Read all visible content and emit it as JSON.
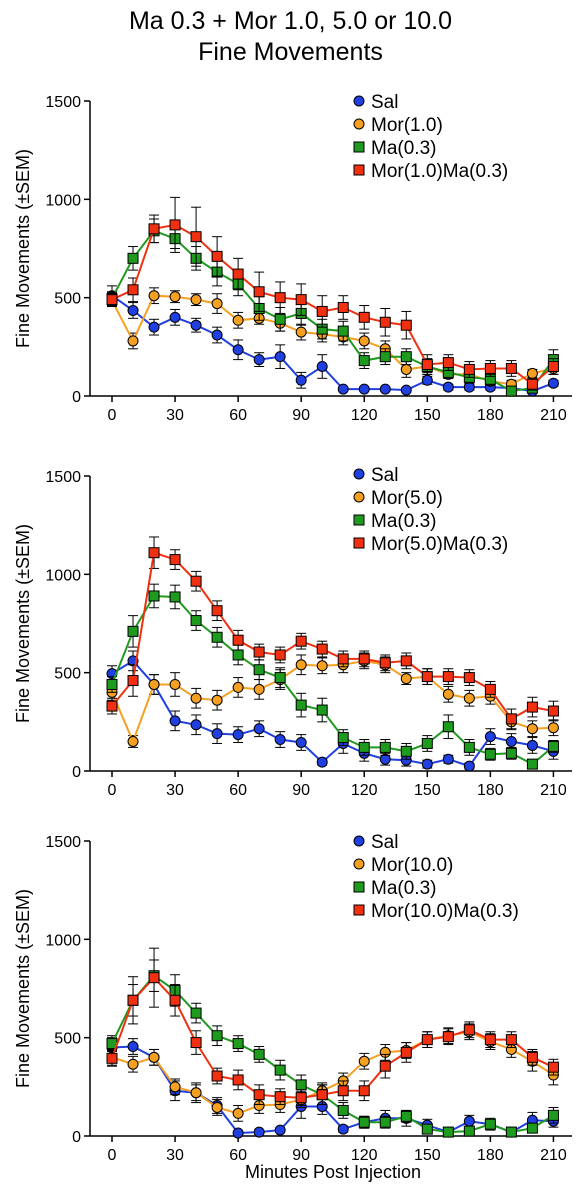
{
  "title": {
    "line1": "Ma 0.3 + Mor 1.0, 5.0 or 10.0",
    "line2": "Fine Movements"
  },
  "xlabel": "Minutes Post Injection",
  "colors": {
    "Sal": "#1f3fe0",
    "Mor": "#f5a020",
    "Ma": "#1e9a1e",
    "MorMa": "#f03010"
  },
  "chart_data": [
    {
      "type": "line",
      "ylabel": "Fine Movements (±SEM)",
      "ylim": [
        0,
        1500
      ],
      "yticks": [
        0,
        500,
        1000,
        1500
      ],
      "xlim": [
        -10,
        215
      ],
      "xticks": [
        0,
        30,
        60,
        90,
        120,
        150,
        180,
        210
      ],
      "legend": "top-right",
      "x": [
        0,
        10,
        20,
        30,
        40,
        50,
        60,
        70,
        80,
        90,
        100,
        110,
        120,
        130,
        140,
        150,
        160,
        170,
        180,
        190,
        200,
        210
      ],
      "series": [
        {
          "name": "Sal",
          "color_key": "Sal",
          "marker": "circle",
          "values": [
            510,
            435,
            350,
            400,
            360,
            310,
            235,
            185,
            200,
            80,
            150,
            35,
            35,
            35,
            30,
            80,
            45,
            45,
            45,
            40,
            25,
            65
          ],
          "sem": [
            50,
            40,
            40,
            40,
            35,
            40,
            50,
            35,
            60,
            40,
            60,
            10,
            10,
            10,
            10,
            20,
            15,
            15,
            15,
            15,
            10,
            15
          ]
        },
        {
          "name": "Mor(1.0)",
          "color_key": "Mor",
          "marker": "circle",
          "values": [
            485,
            280,
            510,
            505,
            490,
            470,
            385,
            395,
            370,
            325,
            315,
            300,
            280,
            240,
            135,
            150,
            110,
            110,
            75,
            60,
            115,
            140
          ],
          "sem": [
            30,
            40,
            40,
            30,
            30,
            50,
            40,
            30,
            40,
            40,
            40,
            40,
            40,
            40,
            40,
            30,
            20,
            20,
            20,
            20,
            20,
            30
          ]
        },
        {
          "name": "Ma(0.3)",
          "color_key": "Ma",
          "marker": "square",
          "values": [
            495,
            700,
            840,
            800,
            700,
            630,
            570,
            445,
            390,
            420,
            340,
            330,
            180,
            200,
            200,
            150,
            120,
            95,
            85,
            25,
            40,
            185
          ],
          "sem": [
            35,
            60,
            60,
            50,
            60,
            70,
            60,
            60,
            60,
            60,
            50,
            50,
            40,
            40,
            40,
            40,
            30,
            30,
            30,
            20,
            20,
            50
          ]
        },
        {
          "name": "Mor(1.0)Ma(0.3)",
          "color_key": "MorMa",
          "marker": "square",
          "values": [
            490,
            540,
            850,
            870,
            810,
            710,
            620,
            530,
            500,
            490,
            430,
            450,
            400,
            375,
            360,
            160,
            170,
            135,
            140,
            140,
            60,
            150
          ],
          "sem": [
            35,
            60,
            70,
            140,
            150,
            100,
            80,
            100,
            80,
            80,
            80,
            60,
            60,
            70,
            70,
            50,
            40,
            40,
            40,
            40,
            30,
            40
          ]
        }
      ]
    },
    {
      "type": "line",
      "ylabel": "Fine Movements (±SEM)",
      "ylim": [
        0,
        1500
      ],
      "yticks": [
        0,
        500,
        1000,
        1500
      ],
      "xlim": [
        -10,
        215
      ],
      "xticks": [
        0,
        30,
        60,
        90,
        120,
        150,
        180,
        210
      ],
      "legend": "top-right",
      "x": [
        0,
        10,
        20,
        30,
        40,
        50,
        60,
        70,
        80,
        90,
        100,
        110,
        120,
        130,
        140,
        150,
        160,
        170,
        180,
        190,
        200,
        210
      ],
      "series": [
        {
          "name": "Sal",
          "color_key": "Sal",
          "marker": "circle",
          "values": [
            495,
            560,
            440,
            255,
            235,
            190,
            185,
            215,
            160,
            145,
            45,
            140,
            90,
            60,
            55,
            35,
            60,
            25,
            175,
            150,
            130,
            100
          ],
          "sem": [
            40,
            50,
            50,
            50,
            50,
            50,
            40,
            40,
            40,
            40,
            15,
            50,
            40,
            30,
            30,
            20,
            20,
            15,
            40,
            40,
            40,
            40
          ]
        },
        {
          "name": "Mor(5.0)",
          "color_key": "Mor",
          "marker": "circle",
          "values": [
            400,
            150,
            440,
            440,
            370,
            360,
            425,
            415,
            465,
            540,
            535,
            540,
            560,
            540,
            470,
            480,
            390,
            370,
            380,
            250,
            215,
            220
          ],
          "sem": [
            40,
            30,
            50,
            60,
            50,
            50,
            50,
            50,
            50,
            50,
            40,
            40,
            40,
            40,
            30,
            40,
            40,
            40,
            40,
            40,
            40,
            40
          ]
        },
        {
          "name": "Ma(0.3)",
          "color_key": "Ma",
          "marker": "square",
          "values": [
            440,
            710,
            890,
            885,
            765,
            680,
            590,
            515,
            475,
            335,
            310,
            170,
            120,
            120,
            100,
            140,
            225,
            120,
            85,
            90,
            35,
            125
          ],
          "sem": [
            40,
            80,
            60,
            60,
            50,
            50,
            50,
            50,
            50,
            60,
            60,
            40,
            40,
            40,
            40,
            40,
            60,
            40,
            30,
            30,
            20,
            30
          ]
        },
        {
          "name": "Mor(5.0)Ma(0.3)",
          "color_key": "MorMa",
          "marker": "square",
          "values": [
            330,
            460,
            1110,
            1075,
            965,
            815,
            665,
            605,
            590,
            660,
            620,
            570,
            570,
            550,
            560,
            480,
            480,
            475,
            415,
            265,
            325,
            305
          ],
          "sem": [
            40,
            80,
            80,
            50,
            50,
            50,
            50,
            40,
            40,
            40,
            40,
            40,
            40,
            40,
            40,
            40,
            40,
            40,
            40,
            50,
            50,
            50
          ]
        }
      ]
    },
    {
      "type": "line",
      "ylabel": "Fine Movements (±SEM)",
      "ylim": [
        0,
        1500
      ],
      "yticks": [
        0,
        500,
        1000,
        1500
      ],
      "xlim": [
        -10,
        215
      ],
      "xticks": [
        0,
        30,
        60,
        90,
        120,
        150,
        180,
        210
      ],
      "legend": "top-right",
      "x": [
        0,
        10,
        20,
        30,
        40,
        50,
        60,
        70,
        80,
        90,
        100,
        110,
        120,
        130,
        140,
        150,
        160,
        170,
        180,
        190,
        200,
        210
      ],
      "series": [
        {
          "name": "Sal",
          "color_key": "Sal",
          "marker": "circle",
          "values": [
            450,
            455,
            400,
            230,
            220,
            155,
            15,
            20,
            30,
            150,
            150,
            35,
            70,
            90,
            90,
            55,
            20,
            75,
            60,
            20,
            80,
            75
          ],
          "sem": [
            50,
            40,
            40,
            50,
            50,
            40,
            10,
            10,
            10,
            60,
            40,
            15,
            30,
            40,
            40,
            30,
            10,
            30,
            30,
            10,
            40,
            30
          ]
        },
        {
          "name": "Mor(10.0)",
          "color_key": "Mor",
          "marker": "circle",
          "values": [
            400,
            365,
            400,
            250,
            220,
            145,
            115,
            155,
            160,
            185,
            230,
            280,
            380,
            425,
            435,
            490,
            510,
            530,
            480,
            440,
            380,
            310
          ],
          "sem": [
            40,
            40,
            40,
            40,
            40,
            40,
            40,
            40,
            40,
            40,
            40,
            40,
            40,
            40,
            40,
            40,
            40,
            40,
            40,
            40,
            50,
            50
          ]
        },
        {
          "name": "Ma(0.3)",
          "color_key": "Ma",
          "marker": "square",
          "values": [
            470,
            690,
            815,
            740,
            625,
            510,
            470,
            415,
            335,
            260,
            210,
            130,
            70,
            70,
            100,
            35,
            20,
            25,
            60,
            20,
            40,
            105
          ],
          "sem": [
            40,
            80,
            80,
            80,
            50,
            50,
            40,
            40,
            50,
            50,
            50,
            40,
            30,
            30,
            30,
            20,
            10,
            15,
            20,
            10,
            15,
            40
          ]
        },
        {
          "name": "Mor(10.0)Ma(0.3)",
          "color_key": "MorMa",
          "marker": "square",
          "values": [
            395,
            690,
            805,
            690,
            475,
            305,
            285,
            210,
            200,
            195,
            210,
            230,
            230,
            355,
            425,
            490,
            505,
            540,
            490,
            490,
            400,
            350
          ],
          "sem": [
            40,
            120,
            150,
            80,
            60,
            40,
            50,
            50,
            40,
            40,
            50,
            50,
            50,
            60,
            50,
            40,
            40,
            40,
            40,
            40,
            40,
            40
          ]
        }
      ]
    }
  ]
}
